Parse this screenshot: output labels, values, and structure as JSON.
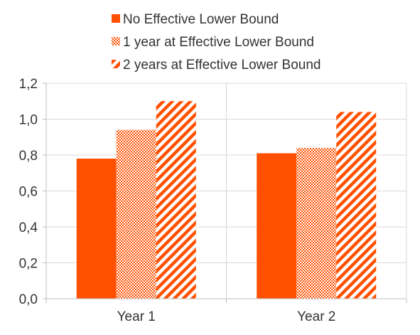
{
  "chart_data": {
    "type": "bar",
    "categories": [
      "Year 1",
      "Year 2"
    ],
    "series": [
      {
        "name": "No Effective Lower Bound",
        "values": [
          0.78,
          0.81
        ],
        "pattern": "solid"
      },
      {
        "name": "1 year at Effective Lower Bound",
        "values": [
          0.94,
          0.84
        ],
        "pattern": "checker"
      },
      {
        "name": "2 years at Effective Lower Bound",
        "values": [
          1.1,
          1.04
        ],
        "pattern": "diagonal"
      }
    ],
    "yticks": [
      "0,0",
      "0,2",
      "0,4",
      "0,6",
      "0,8",
      "1,0",
      "1,2"
    ],
    "ylim": [
      0,
      1.2
    ],
    "grid": true,
    "legend_position": "top-center",
    "title": "",
    "xlabel": "",
    "ylabel": "",
    "colors": {
      "bar": "#ff5000",
      "grid": "#d9d9d9",
      "axis": "#bfbfbf",
      "text": "#333333"
    }
  }
}
